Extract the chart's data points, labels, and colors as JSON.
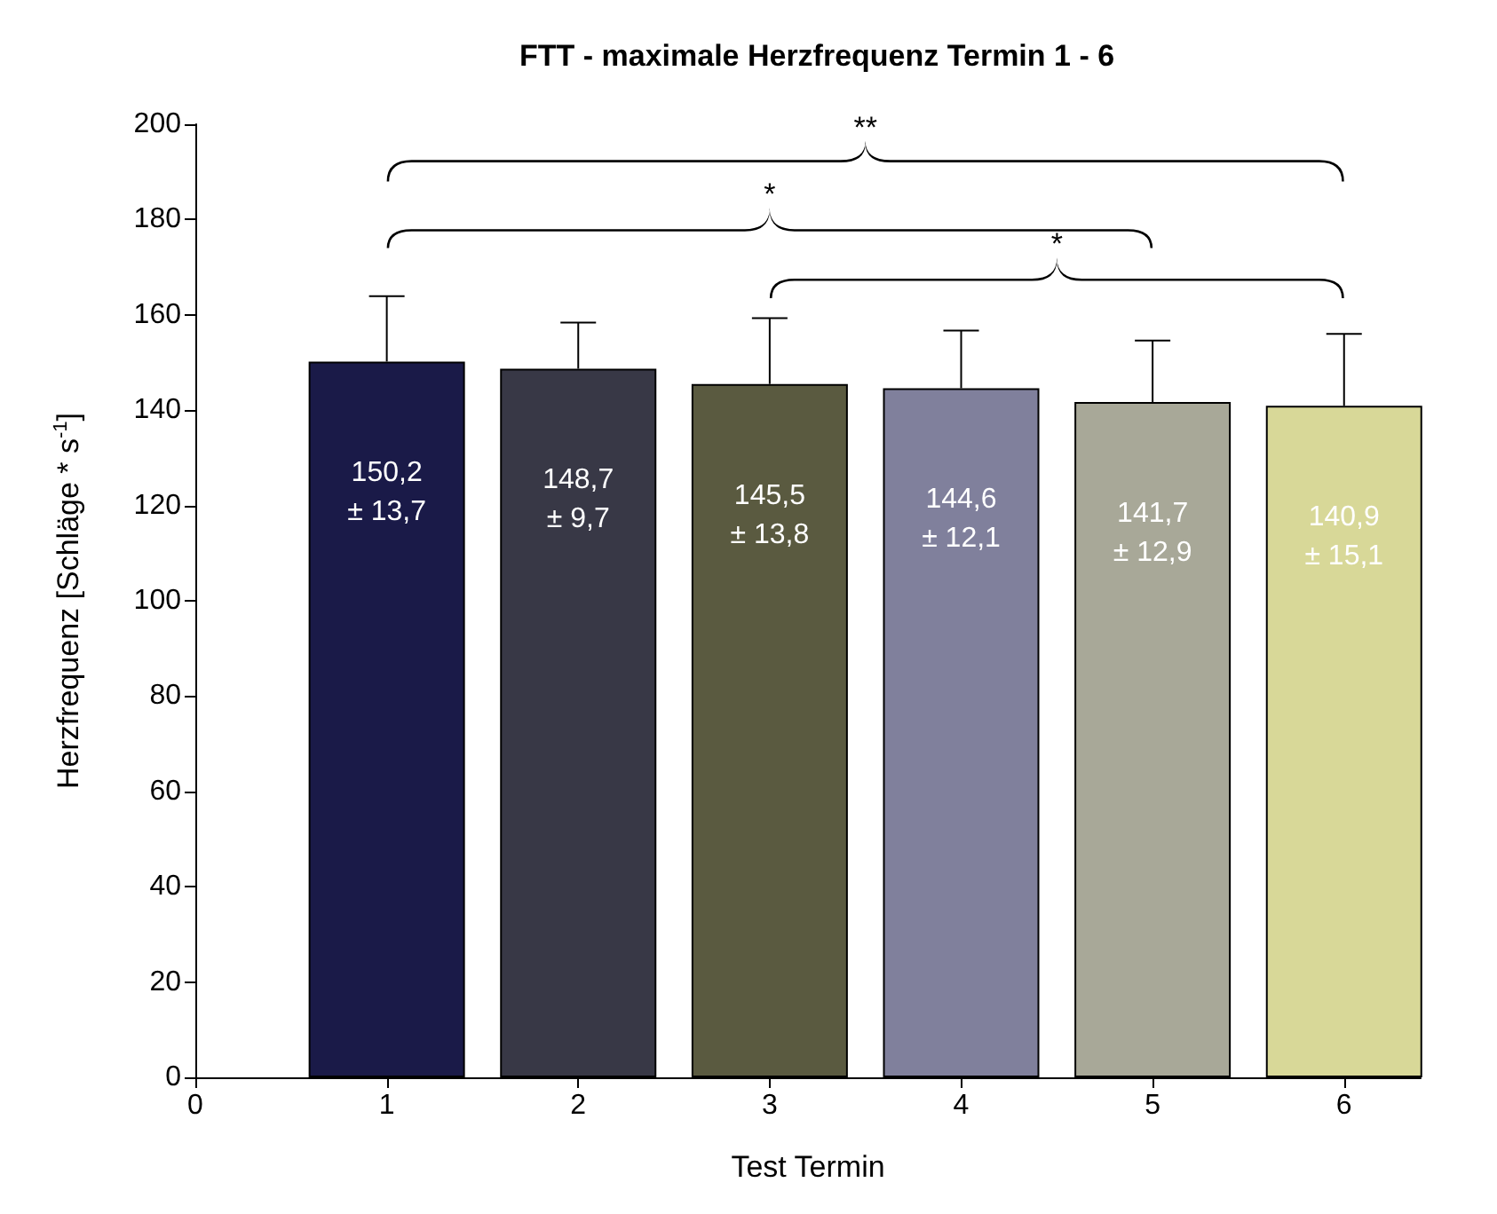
{
  "chart_data": {
    "type": "bar",
    "title": "FTT - maximale Herzfrequenz Termin 1 - 6",
    "xlabel": "Test Termin",
    "ylabel": "Herzfrequenz [Schläge * s$^{-1}$]",
    "x": [
      1,
      2,
      3,
      4,
      5,
      6
    ],
    "values": [
      150.2,
      148.7,
      145.5,
      144.6,
      141.7,
      140.9
    ],
    "colors": [
      "#1a1a48",
      "#383846",
      "#5a5a40",
      "#80809c",
      "#a8a898",
      "#d8d898"
    ],
    "errors": [
      [
        150.2,
        163.9
      ],
      [
        148.7,
        158.4
      ],
      [
        145.5,
        159.3
      ],
      [
        144.6,
        156.7
      ],
      [
        141.7,
        154.6
      ],
      [
        140.9,
        156.0
      ]
    ],
    "value_labels": [
      "150,2\n± 13,7",
      "148,7\n± 9,7",
      "145,5\n± 13,8",
      "144,6\n± 12,1",
      "141,7\n± 12,9",
      "140,9\n± 15,1"
    ],
    "annotations": [
      "**",
      "*",
      "*"
    ],
    "xlim": [
      0,
      6.4
    ],
    "xticks": [
      0,
      1,
      2,
      3,
      4,
      5,
      6
    ],
    "ylim": [
      0,
      200
    ],
    "yticks": [
      0,
      20,
      40,
      60,
      80,
      100,
      120,
      140,
      160,
      180,
      200
    ],
    "grid": false
  }
}
